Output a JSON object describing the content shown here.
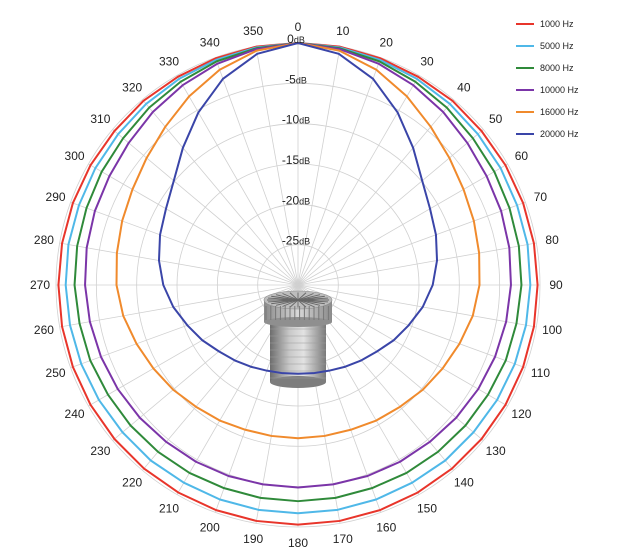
{
  "chart_data": {
    "type": "polar-line",
    "angle_ticks": [
      "0",
      "10",
      "20",
      "30",
      "40",
      "50",
      "60",
      "70",
      "80",
      "90",
      "100",
      "110",
      "120",
      "130",
      "140",
      "150",
      "160",
      "170",
      "180",
      "190",
      "200",
      "210",
      "220",
      "230",
      "240",
      "250",
      "260",
      "270",
      "280",
      "290",
      "300",
      "310",
      "320",
      "330",
      "340",
      "350"
    ],
    "radial_ticks": [
      {
        "value": 0,
        "label": "0",
        "unit": "dB"
      },
      {
        "value": -5,
        "label": "-5",
        "unit": "dB"
      },
      {
        "value": -10,
        "label": "-10",
        "unit": "dB"
      },
      {
        "value": -15,
        "label": "-15",
        "unit": "dB"
      },
      {
        "value": -20,
        "label": "-20",
        "unit": "dB"
      },
      {
        "value": -25,
        "label": "-25",
        "unit": "dB"
      }
    ],
    "r_range": [
      -30,
      0
    ],
    "angle_direction": "clockwise",
    "zero_angle": "top",
    "grid": true,
    "legend_position": "top-right",
    "angles": [
      0,
      10,
      20,
      30,
      40,
      50,
      60,
      70,
      80,
      90,
      100,
      110,
      120,
      130,
      140,
      150,
      160,
      170,
      180
    ],
    "series": [
      {
        "name": "1000 Hz",
        "color": "#e8352b",
        "values": [
          0,
          0,
          -0.1,
          -0.2,
          -0.2,
          -0.3,
          -0.3,
          -0.3,
          -0.3,
          -0.3,
          -0.3,
          -0.3,
          -0.3,
          -0.3,
          -0.3,
          -0.3,
          -0.3,
          -0.3,
          -0.3
        ]
      },
      {
        "name": "5000 Hz",
        "color": "#4fb8e8",
        "values": [
          0,
          -0.1,
          -0.3,
          -0.5,
          -0.7,
          -0.9,
          -1.0,
          -1.1,
          -1.1,
          -1.2,
          -1.3,
          -1.4,
          -1.5,
          -1.6,
          -1.6,
          -1.7,
          -1.7,
          -1.7,
          -1.7
        ]
      },
      {
        "name": "8000 Hz",
        "color": "#2f8a3a",
        "values": [
          0,
          -0.2,
          -0.5,
          -0.9,
          -1.3,
          -1.7,
          -1.9,
          -2.1,
          -2.2,
          -2.3,
          -2.5,
          -2.6,
          -2.8,
          -2.9,
          -3.0,
          -3.1,
          -3.2,
          -3.2,
          -3.2
        ]
      },
      {
        "name": "10000 Hz",
        "color": "#7b35a8",
        "values": [
          0,
          -0.3,
          -0.8,
          -1.4,
          -2.0,
          -2.6,
          -3.0,
          -3.2,
          -3.4,
          -3.6,
          -3.8,
          -4.0,
          -4.2,
          -4.4,
          -4.6,
          -4.7,
          -4.8,
          -4.9,
          -4.9
        ]
      },
      {
        "name": "16000 Hz",
        "color": "#f08a2c",
        "values": [
          0,
          -0.5,
          -1.6,
          -3.0,
          -4.4,
          -5.5,
          -6.3,
          -6.8,
          -7.2,
          -7.5,
          -8.0,
          -8.7,
          -9.3,
          -9.8,
          -10.3,
          -10.6,
          -10.9,
          -11.0,
          -11.0
        ]
      },
      {
        "name": "20000 Hz",
        "color": "#3a45a8",
        "values": [
          0,
          -0.9,
          -2.8,
          -5.3,
          -7.8,
          -9.9,
          -11.1,
          -11.8,
          -12.5,
          -13.3,
          -14.3,
          -15.4,
          -16.3,
          -17.2,
          -17.8,
          -18.3,
          -18.7,
          -18.9,
          -19.0
        ]
      }
    ]
  }
}
